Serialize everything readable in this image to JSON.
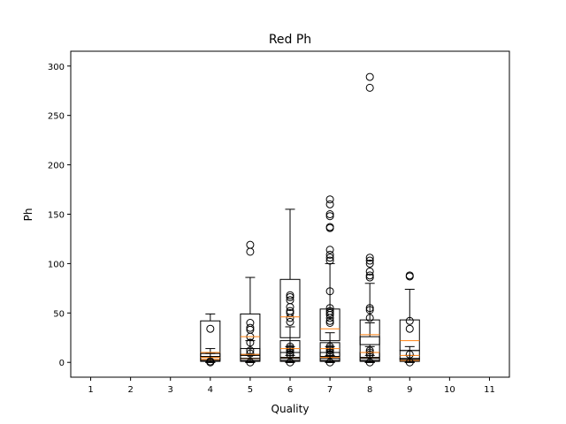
{
  "chart_data": {
    "type": "box",
    "title": "Red Ph",
    "xlabel": "Quality",
    "ylabel": "Ph",
    "xlim": [
      0.5,
      11.5
    ],
    "ylim": [
      -15,
      315
    ],
    "x_ticks": [
      "1",
      "2",
      "3",
      "4",
      "5",
      "6",
      "7",
      "8",
      "9",
      "10",
      "11"
    ],
    "y_ticks": [
      "0",
      "50",
      "100",
      "150",
      "200",
      "250",
      "300"
    ],
    "y_tick_values": [
      0,
      50,
      100,
      150,
      200,
      250,
      300
    ],
    "grid": false,
    "colors": {
      "box": "#000000",
      "median": "#ff7f0e",
      "axes": "#000000",
      "background": "#ffffff"
    },
    "boxes": [
      {
        "x": 4,
        "q1": 1,
        "median": 3,
        "q3": 5,
        "whisker_low": 0,
        "whisker_high": 9,
        "outliers": [
          0,
          1
        ]
      },
      {
        "x": 4,
        "q1": 2,
        "median": 5,
        "q3": 9,
        "whisker_low": 0,
        "whisker_high": 14,
        "outliers": []
      },
      {
        "x": 4,
        "q1": 6,
        "median": 10,
        "q3": 42,
        "whisker_low": 0,
        "whisker_high": 49,
        "outliers": [
          34
        ]
      },
      {
        "x": 5,
        "q1": 1,
        "median": 2,
        "q3": 4,
        "whisker_low": 0,
        "whisker_high": 7,
        "outliers": [
          0,
          9,
          12
        ]
      },
      {
        "x": 5,
        "q1": 2,
        "median": 4,
        "q3": 8,
        "whisker_low": 0,
        "whisker_high": 14,
        "outliers": [
          20,
          26,
          33
        ]
      },
      {
        "x": 5,
        "q1": 4,
        "median": 8,
        "q3": 14,
        "whisker_low": 0,
        "whisker_high": 22,
        "outliers": [
          35,
          40
        ]
      },
      {
        "x": 5,
        "q1": 7,
        "median": 26,
        "q3": 49,
        "whisker_low": 0,
        "whisker_high": 86,
        "outliers": [
          112,
          119
        ]
      },
      {
        "x": 6,
        "q1": 1,
        "median": 2,
        "q3": 4,
        "whisker_low": 0,
        "whisker_high": 7,
        "outliers": [
          0,
          8,
          10,
          12,
          14,
          16
        ]
      },
      {
        "x": 6,
        "q1": 2,
        "median": 5,
        "q3": 10,
        "whisker_low": 0,
        "whisker_high": 16,
        "outliers": []
      },
      {
        "x": 6,
        "q1": 5,
        "median": 14,
        "q3": 22,
        "whisker_low": 0,
        "whisker_high": 36,
        "outliers": [
          41,
          45,
          50,
          52,
          56,
          63,
          66,
          68
        ]
      },
      {
        "x": 6,
        "q1": 25,
        "median": 46,
        "q3": 84,
        "whisker_low": 0,
        "whisker_high": 155,
        "outliers": []
      },
      {
        "x": 7,
        "q1": 1,
        "median": 2,
        "q3": 4,
        "whisker_low": 0,
        "whisker_high": 7,
        "outliers": [
          0,
          8,
          10,
          12,
          14,
          16
        ]
      },
      {
        "x": 7,
        "q1": 2,
        "median": 5,
        "q3": 10,
        "whisker_low": 0,
        "whisker_high": 16,
        "outliers": []
      },
      {
        "x": 7,
        "q1": 6,
        "median": 14,
        "q3": 20,
        "whisker_low": 0,
        "whisker_high": 30,
        "outliers": [
          40,
          42,
          45,
          48,
          50,
          52,
          55
        ]
      },
      {
        "x": 7,
        "q1": 22,
        "median": 34,
        "q3": 54,
        "whisker_low": 0,
        "whisker_high": 100,
        "outliers": [
          72,
          103,
          106,
          109,
          114,
          136,
          137,
          148,
          150,
          160,
          165
        ]
      },
      {
        "x": 8,
        "q1": 1,
        "median": 2,
        "q3": 4,
        "whisker_low": 0,
        "whisker_high": 7,
        "outliers": [
          0,
          8,
          10,
          12
        ]
      },
      {
        "x": 8,
        "q1": 2,
        "median": 5,
        "q3": 10,
        "whisker_low": 0,
        "whisker_high": 16,
        "outliers": []
      },
      {
        "x": 8,
        "q1": 5,
        "median": 10,
        "q3": 26,
        "whisker_low": 0,
        "whisker_high": 40,
        "outliers": [
          45,
          53,
          55
        ]
      },
      {
        "x": 8,
        "q1": 18,
        "median": 28,
        "q3": 43,
        "whisker_low": 0,
        "whisker_high": 80,
        "outliers": [
          86,
          88,
          92,
          100,
          103,
          106,
          278,
          289
        ]
      },
      {
        "x": 9,
        "q1": 1,
        "median": 2,
        "q3": 4,
        "whisker_low": 0,
        "whisker_high": 7,
        "outliers": [
          0,
          8
        ]
      },
      {
        "x": 9,
        "q1": 3,
        "median": 7,
        "q3": 12,
        "whisker_low": 0,
        "whisker_high": 16,
        "outliers": []
      },
      {
        "x": 9,
        "q1": 12,
        "median": 22,
        "q3": 43,
        "whisker_low": 0,
        "whisker_high": 74,
        "outliers": [
          34,
          42,
          87,
          88
        ]
      }
    ]
  }
}
